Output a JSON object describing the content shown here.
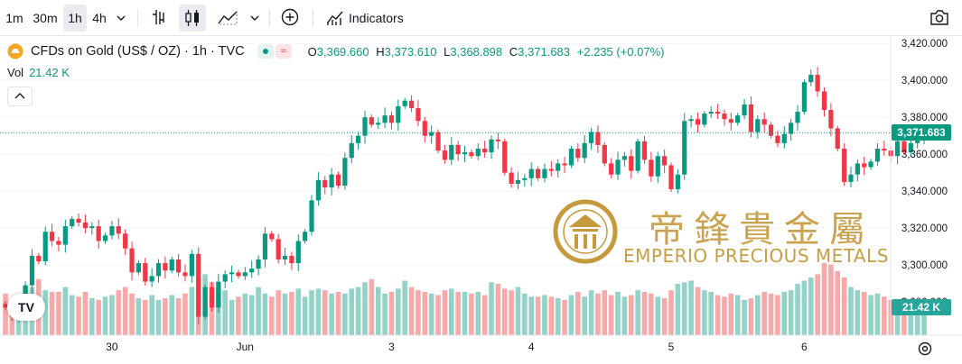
{
  "toolbar": {
    "intervals": [
      "1m",
      "30m",
      "1h",
      "4h"
    ],
    "active_interval": "1h",
    "indicators_label": "Indicators",
    "icons": [
      "chevron-down-icon",
      "bar-chart-icon",
      "candles-icon",
      "area-chart-icon",
      "chevron-down-icon",
      "plus-circle-icon",
      "indicators-icon",
      "camera-icon"
    ]
  },
  "legend": {
    "symbol": "CFDs on Gold (US$ / OZ) · 1h · TVC",
    "open_label": "O",
    "open": "3,369.660",
    "high_label": "H",
    "high": "3,373.610",
    "low_label": "L",
    "low": "3,368.898",
    "close_label": "C",
    "close": "3,371.683",
    "change": "+2.235 (+0.07%)"
  },
  "volume_legend": {
    "label": "Vol",
    "value": "21.42 K"
  },
  "watermark": {
    "chinese": "帝鋒貴金屬",
    "english": "EMPERIO PRECIOUS METALS"
  },
  "tv_logo": "TV",
  "colors": {
    "up": "#089981",
    "down": "#f23645",
    "vol_up": "#93d2c7",
    "vol_down": "#f7a9a9",
    "gold": "#c49a3c"
  },
  "chart_data": {
    "type": "candlestick",
    "price_axis": {
      "ticks": [
        3280,
        3300,
        3320,
        3340,
        3360,
        3380,
        3400,
        3420
      ],
      "tick_labels": [
        "3,280.000",
        "3,300.000",
        "3,320.000",
        "3,340.000",
        "3,360.000",
        "3,380.000",
        "3,400.000",
        "3,420.000"
      ],
      "range": [
        3262,
        3424
      ]
    },
    "time_axis": {
      "labels": [
        "30",
        "Jun",
        "3",
        "4",
        "5",
        "6"
      ]
    },
    "last_price": 3371.683,
    "last_price_label": "3,371.683",
    "last_volume_label": "21.42 K",
    "closes": [
      3277,
      3272,
      3278,
      3289,
      3305,
      3302,
      3318,
      3313,
      3311,
      3321,
      3325,
      3323,
      3320,
      3321,
      3313,
      3316,
      3321,
      3317,
      3309,
      3296,
      3301,
      3291,
      3294,
      3301,
      3297,
      3303,
      3296,
      3294,
      3306,
      3272,
      3288,
      3277,
      3291,
      3295,
      3296,
      3294,
      3296,
      3298,
      3303,
      3317,
      3314,
      3303,
      3305,
      3301,
      3313,
      3318,
      3335,
      3346,
      3342,
      3349,
      3343,
      3358,
      3366,
      3370,
      3380,
      3376,
      3377,
      3381,
      3377,
      3386,
      3389,
      3385,
      3378,
      3370,
      3372,
      3362,
      3357,
      3365,
      3360,
      3361,
      3359,
      3363,
      3361,
      3368,
      3367,
      3350,
      3344,
      3346,
      3347,
      3352,
      3347,
      3352,
      3351,
      3355,
      3354,
      3363,
      3358,
      3366,
      3372,
      3365,
      3355,
      3349,
      3357,
      3359,
      3351,
      3367,
      3357,
      3348,
      3359,
      3354,
      3341,
      3349,
      3378,
      3379,
      3376,
      3382,
      3383,
      3382,
      3379,
      3377,
      3381,
      3387,
      3372,
      3379,
      3376,
      3370,
      3366,
      3371,
      3377,
      3383,
      3399,
      3403,
      3394,
      3384,
      3374,
      3363,
      3345,
      3349,
      3355,
      3353,
      3356,
      3363,
      3362,
      3359,
      3367,
      3361,
      3366,
      3369,
      3371.683
    ],
    "volumes": [
      26,
      22,
      24,
      30,
      30,
      35,
      28,
      27,
      27,
      30,
      25,
      24,
      27,
      23,
      22,
      24,
      25,
      28,
      30,
      26,
      23,
      22,
      25,
      22,
      23,
      25,
      23,
      26,
      30,
      36,
      38,
      33,
      30,
      28,
      22,
      24,
      26,
      25,
      30,
      26,
      24,
      28,
      26,
      27,
      29,
      24,
      28,
      29,
      28,
      26,
      27,
      26,
      29,
      30,
      33,
      35,
      30,
      26,
      27,
      29,
      34,
      30,
      28,
      27,
      26,
      25,
      28,
      29,
      27,
      27,
      26,
      27,
      25,
      33,
      32,
      29,
      28,
      30,
      26,
      24,
      24,
      25,
      24,
      23,
      22,
      25,
      27,
      24,
      28,
      26,
      28,
      25,
      27,
      24,
      25,
      28,
      27,
      26,
      24,
      23,
      28,
      32,
      33,
      34,
      30,
      28,
      27,
      25,
      24,
      26,
      25,
      22,
      23,
      25,
      27,
      26,
      25,
      27,
      28,
      32,
      34,
      36,
      38,
      45,
      44,
      40,
      36,
      30,
      28,
      27,
      25,
      26,
      24,
      22,
      22,
      23,
      22,
      21,
      21.42
    ]
  }
}
